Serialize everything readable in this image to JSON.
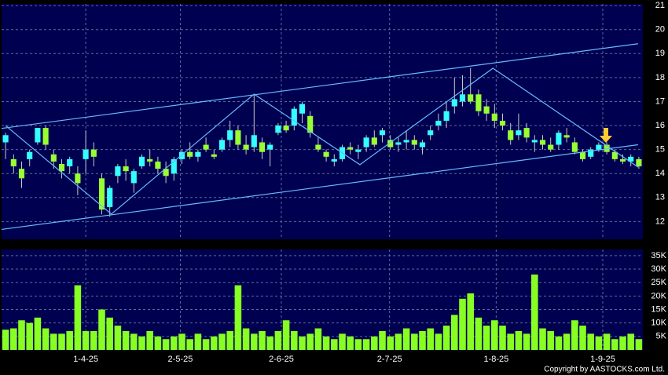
{
  "chart_data": {
    "type": "candlestick",
    "open": [
      15.3,
      14.6,
      14.2,
      14.6,
      15.3,
      15.9,
      14.8,
      14.4,
      14.3,
      14.0,
      14.6,
      15.0,
      13.8,
      12.6,
      13.9,
      14.3,
      13.6,
      14.3,
      14.6,
      14.5,
      14.2,
      14.0,
      14.6,
      14.9,
      14.7,
      15.2,
      14.8,
      15.0,
      15.4,
      15.8,
      15.2,
      15.1,
      15.3,
      15.0,
      15.7,
      16.0,
      16.0,
      16.5,
      16.4,
      15.2,
      14.9,
      14.5,
      14.6,
      15.1,
      14.9,
      15.1,
      15.5,
      15.6,
      15.4,
      15.2,
      15.3,
      15.4,
      15.1,
      15.6,
      16.0,
      16.2,
      16.8,
      17.0,
      17.3,
      17.3,
      16.8,
      16.5,
      16.2,
      15.8,
      15.6,
      15.9,
      15.3,
      15.4,
      15.2,
      15.2,
      15.6,
      15.3,
      14.9,
      14.7,
      15.0,
      15.2,
      14.9,
      14.6,
      14.5,
      14.6
    ],
    "high": [
      15.7,
      14.8,
      14.5,
      15.0,
      15.9,
      16.0,
      15.0,
      14.6,
      14.7,
      14.3,
      15.8,
      15.3,
      14.0,
      13.5,
      14.4,
      14.6,
      14.2,
      14.8,
      15.0,
      14.7,
      14.5,
      14.7,
      15.0,
      15.3,
      15.0,
      15.5,
      15.0,
      15.5,
      16.2,
      16.0,
      15.6,
      17.3,
      15.5,
      15.3,
      16.1,
      16.2,
      16.8,
      17.0,
      16.6,
      15.5,
      15.0,
      14.8,
      15.2,
      15.3,
      15.2,
      15.6,
      15.8,
      15.9,
      15.6,
      15.5,
      15.8,
      15.6,
      15.4,
      16.0,
      16.5,
      17.0,
      18.0,
      18.1,
      18.4,
      17.5,
      17.1,
      16.9,
      16.5,
      16.1,
      16.5,
      16.1,
      15.6,
      15.6,
      15.5,
      15.8,
      15.9,
      15.5,
      15.0,
      15.1,
      15.3,
      15.3,
      15.0,
      14.8,
      14.8,
      14.7
    ],
    "low": [
      14.6,
      14.0,
      13.4,
      14.3,
      15.2,
      15.0,
      14.2,
      13.8,
      14.0,
      13.1,
      14.0,
      14.3,
      12.3,
      12.2,
      13.6,
      13.7,
      13.2,
      14.2,
      14.3,
      14.0,
      13.6,
      13.7,
      14.4,
      14.6,
      14.5,
      14.9,
      14.6,
      14.9,
      15.1,
      15.0,
      14.8,
      14.9,
      14.6,
      14.3,
      15.6,
      15.7,
      15.8,
      16.1,
      15.5,
      14.9,
      14.5,
      14.3,
      14.5,
      14.8,
      14.6,
      14.9,
      15.1,
      15.3,
      15.0,
      14.9,
      15.0,
      15.0,
      14.8,
      15.4,
      15.8,
      15.9,
      16.5,
      16.8,
      16.9,
      16.4,
      16.2,
      15.9,
      15.8,
      15.2,
      15.4,
      15.3,
      14.9,
      15.0,
      14.9,
      15.0,
      15.3,
      14.8,
      14.5,
      14.6,
      14.9,
      14.8,
      14.5,
      14.4,
      14.3,
      14.2
    ],
    "close": [
      15.6,
      14.3,
      13.8,
      14.9,
      15.9,
      15.2,
      14.5,
      14.1,
      14.6,
      13.6,
      15.0,
      14.7,
      12.5,
      13.4,
      14.3,
      14.1,
      14.1,
      14.7,
      14.5,
      14.2,
      13.9,
      14.6,
      14.9,
      14.7,
      14.9,
      15.0,
      14.7,
      15.4,
      15.8,
      15.2,
      15.0,
      15.6,
      14.9,
      15.2,
      16.0,
      15.8,
      16.7,
      16.9,
      15.7,
      15.0,
      14.7,
      14.6,
      15.1,
      15.0,
      15.0,
      15.5,
      15.2,
      15.8,
      15.1,
      15.3,
      15.4,
      15.2,
      15.3,
      15.8,
      16.2,
      16.6,
      17.1,
      17.3,
      17.0,
      16.6,
      16.5,
      16.2,
      16.0,
      15.4,
      15.8,
      15.5,
      15.4,
      15.2,
      15.0,
      15.7,
      15.5,
      14.9,
      14.6,
      15.0,
      15.2,
      14.9,
      14.6,
      14.5,
      14.7,
      14.3
    ],
    "volume": [
      7500,
      8000,
      11000,
      10000,
      12000,
      8000,
      6000,
      6000,
      7000,
      24000,
      7000,
      7000,
      15000,
      12000,
      9000,
      7000,
      6000,
      5000,
      7000,
      5000,
      4000,
      5000,
      6000,
      4000,
      6000,
      4000,
      5000,
      6000,
      7000,
      24000,
      8000,
      6000,
      7000,
      5000,
      7000,
      11000,
      7000,
      5000,
      6000,
      8000,
      5000,
      4000,
      6000,
      5000,
      4000,
      4000,
      5000,
      7000,
      5000,
      6000,
      8000,
      6000,
      7000,
      8000,
      6000,
      9000,
      13000,
      19000,
      21000,
      12000,
      9000,
      11000,
      9000,
      6000,
      7000,
      6000,
      28000,
      8000,
      7000,
      5000,
      6000,
      11000,
      9000,
      6000,
      5000,
      6000,
      4000,
      5000,
      6000,
      4000
    ],
    "xlim": [
      -0.5,
      79.5
    ],
    "xticks": [
      {
        "value": 10,
        "label": "1-4-25"
      },
      {
        "value": 21.8,
        "label": "2-5-25"
      },
      {
        "value": 34.4,
        "label": "2-6-25"
      },
      {
        "value": 47.9,
        "label": "2-7-25"
      },
      {
        "value": 61.2,
        "label": "1-8-25"
      },
      {
        "value": 74.5,
        "label": "1-9-25"
      }
    ],
    "ylim": [
      11.26,
      21.07
    ],
    "yticks": [
      12,
      13,
      14,
      15,
      16,
      17,
      18,
      19,
      20,
      21
    ],
    "vol_ylim": [
      0,
      37300
    ],
    "vol_yticks": [
      {
        "value": 5000,
        "label": "5K"
      },
      {
        "value": 10000,
        "label": "10K"
      },
      {
        "value": 15000,
        "label": "15K"
      },
      {
        "value": 20000,
        "label": "20K"
      },
      {
        "value": 25000,
        "label": "25K"
      },
      {
        "value": 30000,
        "label": "30K"
      },
      {
        "value": 35000,
        "label": "35K"
      }
    ],
    "up_color": "#33ffff",
    "down_color": "#99ff33",
    "volume_color": "#88ff22",
    "line_color": "#66bbff",
    "grid": true,
    "trend_lines": [
      {
        "x": [
          -0.5,
          78.9
        ],
        "y": [
          15.88,
          19.41
        ]
      },
      {
        "x": [
          -0.5,
          78.9
        ],
        "y": [
          11.67,
          15.2
        ]
      }
    ],
    "zigzag": {
      "x": [
        0,
        13.2,
        31.0,
        44.2,
        60.8,
        78.9
      ],
      "y": [
        16.0,
        12.31,
        17.31,
        14.37,
        18.39,
        14.27
      ]
    },
    "copyright": "Copyright by AASTOCKS.com Ltd."
  }
}
